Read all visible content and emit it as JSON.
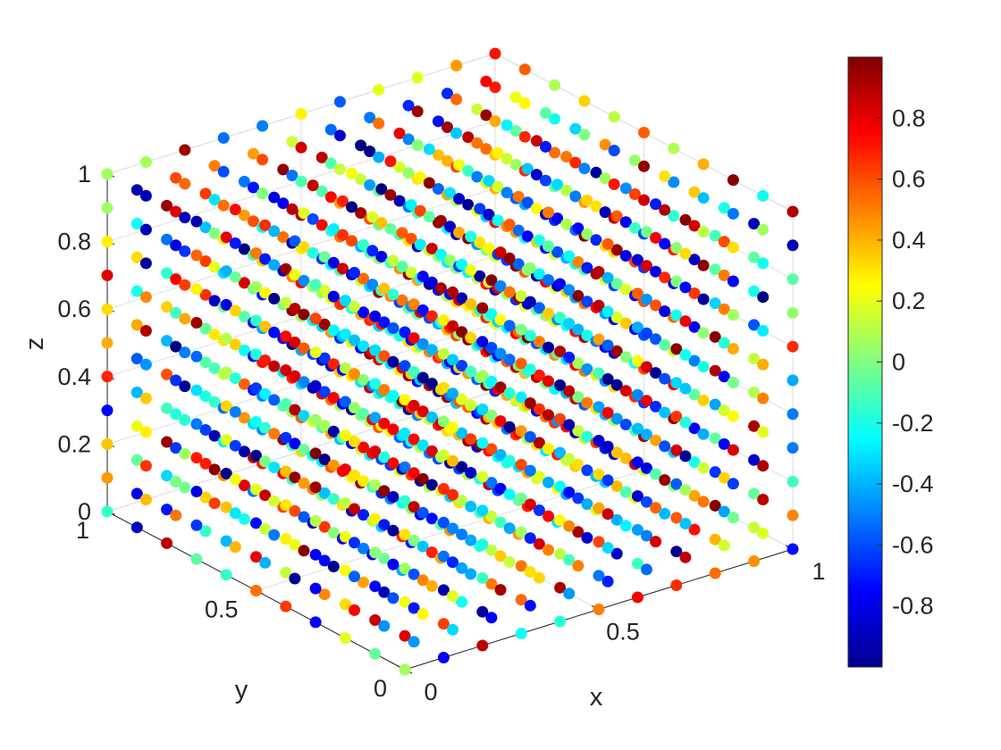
{
  "chart_data": {
    "type": "scatter",
    "subtype": "scatter3",
    "title": "",
    "xlabel": "x",
    "ylabel": "y",
    "zlabel": "z",
    "xlim": [
      0,
      1
    ],
    "ylim": [
      0,
      1
    ],
    "zlim": [
      0,
      1
    ],
    "grid": true,
    "colormap": "jet",
    "clim": [
      -1,
      1
    ],
    "x_ticks": [
      "0",
      "0.5",
      "1"
    ],
    "y_ticks": [
      "0",
      "0.5",
      "1"
    ],
    "z_ticks": [
      "0",
      "0.2",
      "0.4",
      "0.6",
      "0.8",
      "1"
    ],
    "colorbar": {
      "placement": "right",
      "ticks": [
        "-0.8",
        "-0.6",
        "-0.4",
        "-0.2",
        "0",
        "0.2",
        "0.4",
        "0.6",
        "0.8"
      ]
    },
    "grid_points": {
      "x_range": [
        0,
        1
      ],
      "y_range": [
        0,
        1
      ],
      "z_range": [
        0,
        1
      ],
      "count_per_axis": 11,
      "color_value": "uniformly scattered in [-1, 1] (pseudo-random per point)"
    },
    "background_color": "#ffffff"
  }
}
